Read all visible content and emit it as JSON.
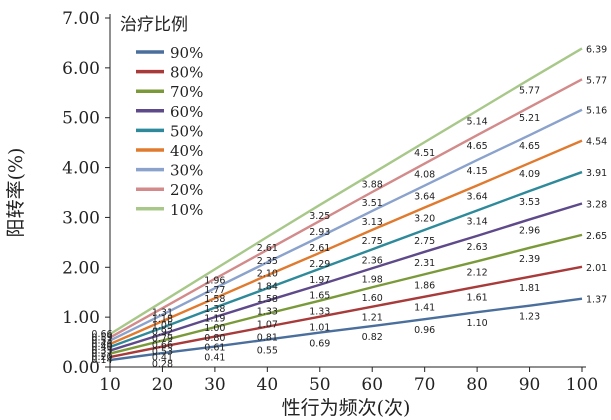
{
  "chart_data": {
    "type": "line",
    "xlabel": "性行为频次(次)",
    "ylabel": "阳转率(%)",
    "xlim": [
      10,
      100
    ],
    "ylim": [
      0,
      7
    ],
    "xticks": [
      "10",
      "20",
      "30",
      "40",
      "50",
      "60",
      "70",
      "80",
      "90",
      "100"
    ],
    "yticks": [
      "0.00",
      "1.00",
      "2.00",
      "3.00",
      "4.00",
      "5.00",
      "6.00",
      "7.00"
    ],
    "legend_title": "治疗比例",
    "legend_position": "top-left",
    "grid": false,
    "x": [
      10,
      20,
      30,
      40,
      50,
      60,
      70,
      80,
      90,
      100
    ],
    "series": [
      {
        "name": "90%",
        "color": "#4a6f9c",
        "values": [
          0.14,
          0.28,
          0.41,
          0.55,
          0.69,
          0.82,
          0.96,
          1.1,
          1.23,
          1.37
        ],
        "labels": [
          "0.14",
          "0.28",
          "0.41",
          "0.55",
          "0.69",
          "0.82",
          "0.96",
          "1.10",
          "1.23",
          "1.37"
        ]
      },
      {
        "name": "80%",
        "color": "#a83a3a",
        "values": [
          0.2,
          0.41,
          0.61,
          0.81,
          1.01,
          1.21,
          1.41,
          1.61,
          1.81,
          2.01
        ],
        "labels": [
          "0.20",
          "0.41",
          "0.61",
          "0.81",
          "1.01",
          "1.21",
          "1.41",
          "1.61",
          "1.81",
          "2.01"
        ]
      },
      {
        "name": "70%",
        "color": "#7a9a3a",
        "values": [
          0.27,
          0.53,
          0.8,
          1.07,
          1.33,
          1.6,
          1.86,
          2.12,
          2.39,
          2.65
        ],
        "labels": [
          "0.27",
          "0.53",
          "0.80",
          "1.07",
          "1.33",
          "1.60",
          "1.86",
          "2.12",
          "2.39",
          "2.65"
        ]
      },
      {
        "name": "60%",
        "color": "#5e4a8a",
        "values": [
          0.33,
          0.66,
          1.0,
          1.33,
          1.65,
          1.98,
          2.31,
          2.63,
          2.96,
          3.28
        ],
        "labels": [
          "0.33",
          "0.66",
          "1.00",
          "1.33",
          "1.65",
          "1.98",
          "2.31",
          "2.63",
          "2.96",
          "3.28"
        ]
      },
      {
        "name": "50%",
        "color": "#2e8a9a",
        "values": [
          0.4,
          0.79,
          1.19,
          1.58,
          1.97,
          2.36,
          2.75,
          3.14,
          3.53,
          3.91
        ],
        "labels": [
          "0.40",
          "0.79",
          "1.19",
          "1.58",
          "1.97",
          "2.36",
          "2.75",
          "3.14",
          "3.53",
          "3.91"
        ]
      },
      {
        "name": "40%",
        "color": "#e07a2e",
        "values": [
          0.46,
          0.92,
          1.38,
          1.84,
          2.29,
          2.75,
          3.2,
          3.64,
          4.09,
          4.54
        ],
        "labels": [
          "0.46",
          "0.92",
          "1.38",
          "1.84",
          "2.29",
          "2.75",
          "3.20",
          "3.64",
          "4.09",
          "4.54"
        ]
      },
      {
        "name": "30%",
        "color": "#8aa2cc",
        "values": [
          0.53,
          1.05,
          1.58,
          2.1,
          2.61,
          3.13,
          3.64,
          4.15,
          4.65,
          5.16
        ],
        "labels": [
          "0.53",
          "1.05",
          "1.58",
          "2.10",
          "2.61",
          "3.13",
          "3.64",
          "4.15",
          "4.65",
          "5.16"
        ]
      },
      {
        "name": "20%",
        "color": "#d28a8a",
        "values": [
          0.59,
          1.18,
          1.77,
          2.35,
          2.93,
          3.51,
          4.08,
          4.65,
          5.21,
          5.77
        ],
        "labels": [
          "0.59",
          "1.18",
          "1.77",
          "2.35",
          "2.93",
          "3.51",
          "4.08",
          "4.65",
          "5.21",
          "5.77"
        ]
      },
      {
        "name": "10%",
        "color": "#a8c88a",
        "values": [
          0.66,
          1.31,
          1.96,
          2.61,
          3.25,
          3.88,
          4.51,
          5.14,
          5.77,
          6.39
        ],
        "labels": [
          "0.66",
          "1.31",
          "1.96",
          "2.61",
          "3.25",
          "3.88",
          "4.51",
          "5.14",
          "5.77",
          "6.39"
        ]
      }
    ]
  }
}
